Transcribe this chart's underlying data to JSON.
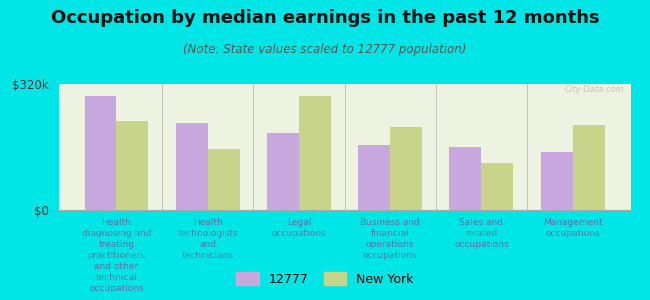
{
  "title": "Occupation by median earnings in the past 12 months",
  "subtitle": "(Note: State values scaled to 12777 population)",
  "categories": [
    "Health\ndiagnosing and\ntreating\npractitioners\nand other\ntechnical\noccupations",
    "Health\ntechnologists\nand\ntechnicians",
    "Legal\noccupations",
    "Business and\nfinancial\noperations\noccupations",
    "Sales and\nrelated\noccupations",
    "Management\noccupations"
  ],
  "values_12777": [
    290000,
    220000,
    195000,
    165000,
    160000,
    148000
  ],
  "values_ny": [
    225000,
    155000,
    290000,
    210000,
    120000,
    215000
  ],
  "ylim": [
    0,
    320000
  ],
  "ytick_labels": [
    "$0",
    "$320k"
  ],
  "bar_color_12777": "#c9a8e0",
  "bar_color_ny": "#c8d48a",
  "background_color": "#00e5e5",
  "plot_bg_color": "#eef2e0",
  "legend_label_12777": "12777",
  "legend_label_ny": "New York",
  "title_fontsize": 13,
  "subtitle_fontsize": 8.5,
  "xtick_fontsize": 6.5,
  "ytick_fontsize": 8.5,
  "legend_fontsize": 9,
  "label_color": "#5577aa",
  "title_color": "#111111",
  "subtitle_color": "#555555",
  "watermark": "City-Data.com"
}
